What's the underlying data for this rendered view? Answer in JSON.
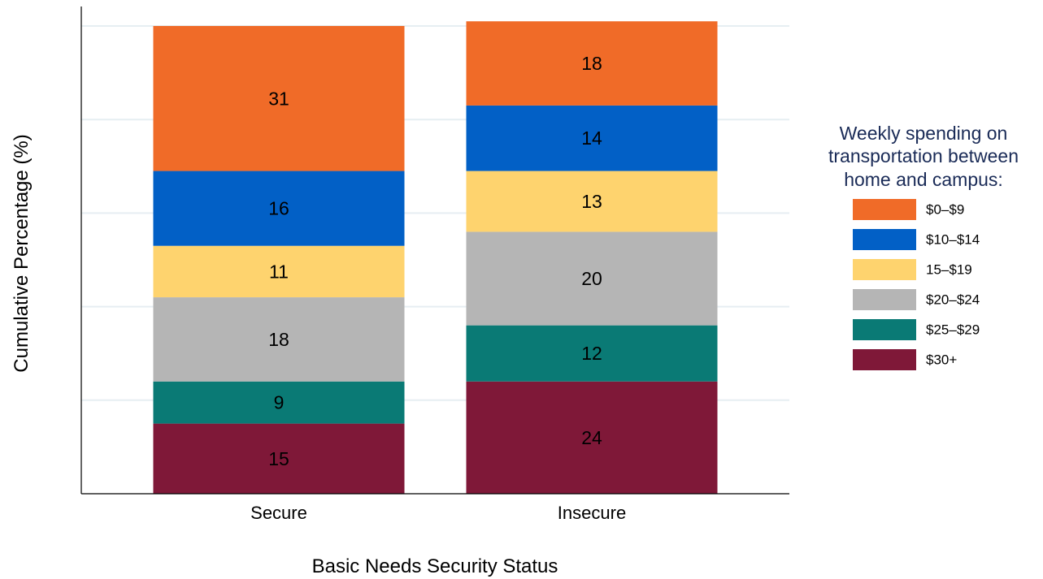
{
  "chart_data": {
    "type": "bar",
    "stacked": true,
    "xlabel": "Basic Needs Security Status",
    "ylabel": "Cumulative Percentage (%)",
    "categories": [
      "Secure",
      "Insecure"
    ],
    "ylim": [
      0,
      100
    ],
    "grid": true,
    "y_tick_labels_shown": false,
    "legend": {
      "title_lines": [
        "Weekly spending on",
        "transportation between",
        "home and campus:"
      ],
      "placement": "right"
    },
    "series": [
      {
        "name": "$30+",
        "color": "#7f1838",
        "values": [
          15,
          24
        ]
      },
      {
        "name": "$25–$29",
        "color": "#0a7a75",
        "values": [
          9,
          12
        ]
      },
      {
        "name": "$20–$24",
        "color": "#b5b5b5",
        "values": [
          18,
          20
        ]
      },
      {
        "name": "15–$19",
        "color": "#fed36e",
        "values": [
          11,
          13
        ]
      },
      {
        "name": "$10–$14",
        "color": "#0260c6",
        "values": [
          16,
          14
        ]
      },
      {
        "name": "$0–$9",
        "color": "#f06b28",
        "values": [
          31,
          18
        ]
      }
    ],
    "legend_title_color": "#1a2b57"
  }
}
